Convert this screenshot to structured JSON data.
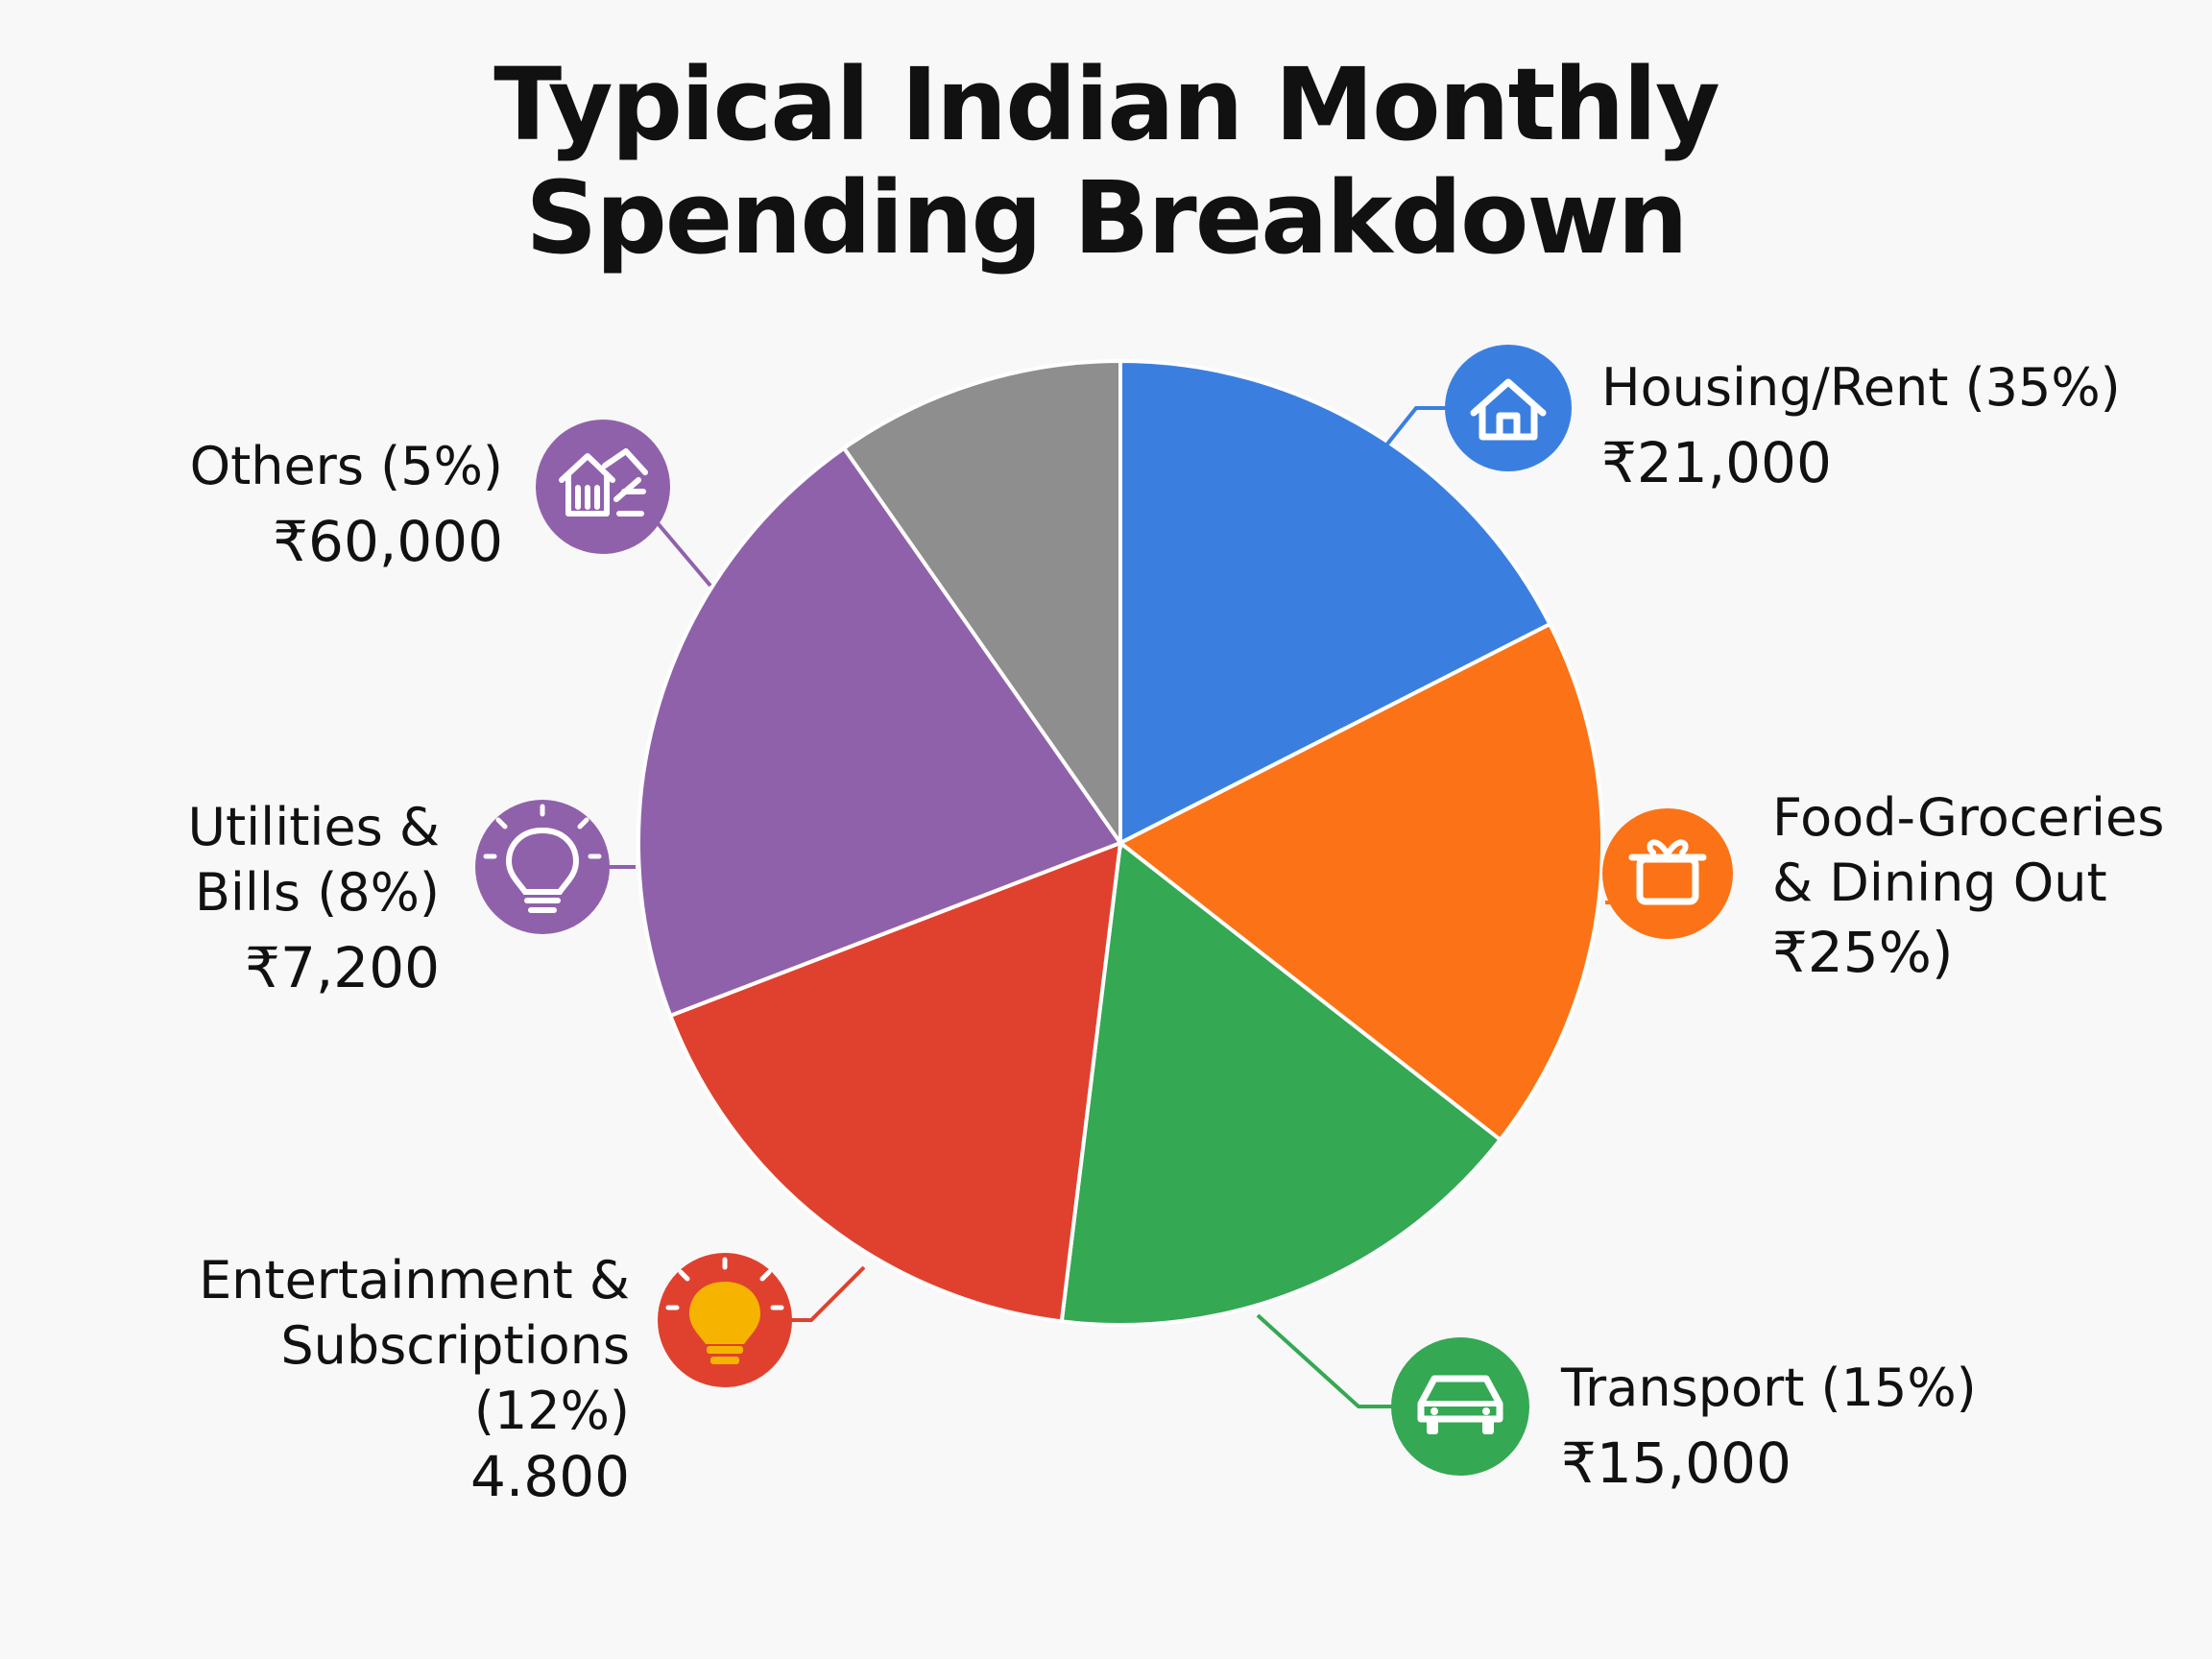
{
  "title_line1": "Typical Indian Monthly",
  "title_line2": "Spending Breakdown",
  "chart_data": {
    "type": "pie",
    "title": "Typical Indian Monthly Spending Breakdown",
    "slices": [
      {
        "label": "Housing/Rent",
        "percent": 35,
        "value_text": "₹21,000",
        "color": "#3a7fe0",
        "icon": "house-icon"
      },
      {
        "label": "Food-Groceries & Dining Out",
        "percent": 25,
        "value_text": "₹25%)",
        "color": "#fb7316",
        "icon": "gift-box-icon"
      },
      {
        "label": "Transport",
        "percent": 15,
        "value_text": "₹15,000",
        "color": "#34a853",
        "icon": "car-icon"
      },
      {
        "label": "Entertainment & Subscriptions",
        "percent": 12,
        "value_text": "4.800",
        "color": "#e0412f",
        "icon": "lightbulb-icon"
      },
      {
        "label": "Utilities & Bills",
        "percent": 8,
        "value_text": "₹7,200",
        "color": "#9061ab",
        "icon": "lightbulb-icon"
      },
      {
        "label": "Others",
        "percent": 5,
        "value_text": "₹60,000",
        "color": "#8e8e8e",
        "icon": "buildings-icon"
      }
    ]
  },
  "labels": {
    "housing": {
      "line1": "Housing/Rent (35%)",
      "line2": "₹21,000"
    },
    "food": {
      "line1": "Food-Groceries",
      "line2": "& Dining Out",
      "line3": "₹25%)"
    },
    "transport": {
      "line1": "Transport (15%)",
      "line2": "₹15,000"
    },
    "entertainment": {
      "line1": "Entertainment &",
      "line2": "Subscriptions",
      "line3": "(12%)",
      "line4": "4.800"
    },
    "utilities": {
      "line1": "Utilities &",
      "line2": "Bills (8%)",
      "line3": "₹7,200"
    },
    "others": {
      "line1": "Others (5%)",
      "line2": "₹60,000"
    }
  }
}
